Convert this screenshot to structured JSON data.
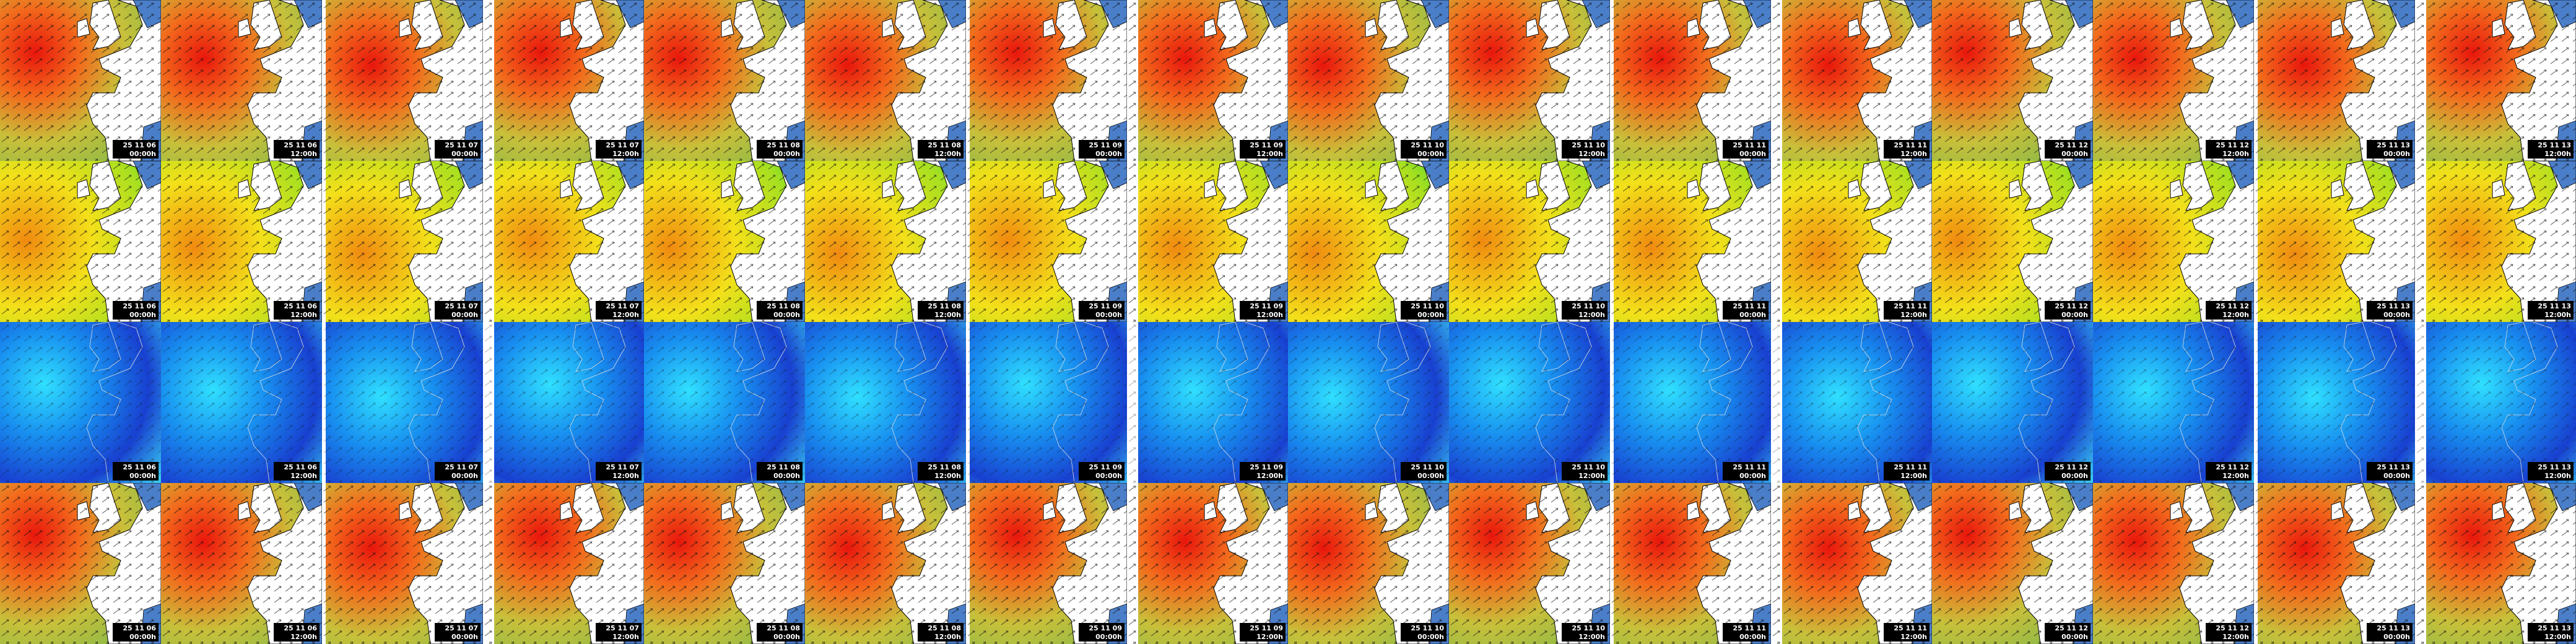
{
  "rows": [
    {
      "tiles": [
        {
          "date": "25 11 06",
          "time": "00:00h"
        },
        {
          "date": "25 11 06",
          "time": "12:00h"
        },
        {
          "date": "25 11 07",
          "time": "00:00h"
        },
        {
          "date": "25 11 07",
          "time": "12:00h"
        },
        {
          "date": "25 11 08",
          "time": "00:00h"
        },
        {
          "date": "25 11 08",
          "time": "12:00h"
        },
        {
          "date": "25 11 09",
          "time": "00:00h"
        },
        {
          "date": "25 11 09",
          "time": "12:00h"
        },
        {
          "date": "25 11 10",
          "time": "00:00h"
        },
        {
          "date": "25 11 10",
          "time": "12:00h"
        },
        {
          "date": "25 11 11",
          "time": "00:00h"
        },
        {
          "date": "25 11 11",
          "time": "12:00h"
        },
        {
          "date": "25 11 12",
          "time": "00:00h"
        },
        {
          "date": "25 11 12",
          "time": "12:00h"
        },
        {
          "date": "25 11 13",
          "time": "00:00h"
        },
        {
          "date": "25 11 13",
          "time": "12:00h"
        }
      ]
    },
    {
      "tiles": [
        {
          "date": "25 11 06",
          "time": "00:00h"
        },
        {
          "date": "25 11 06",
          "time": "12:00h"
        },
        {
          "date": "25 11 07",
          "time": "00:00h"
        },
        {
          "date": "25 11 07",
          "time": "12:00h"
        },
        {
          "date": "25 11 08",
          "time": "00:00h"
        },
        {
          "date": "25 11 08",
          "time": "12:00h"
        },
        {
          "date": "25 11 09",
          "time": "00:00h"
        },
        {
          "date": "25 11 09",
          "time": "12:00h"
        },
        {
          "date": "25 11 10",
          "time": "00:00h"
        },
        {
          "date": "25 11 10",
          "time": "12:00h"
        },
        {
          "date": "25 11 11",
          "time": "00:00h"
        },
        {
          "date": "25 11 11",
          "time": "12:00h"
        },
        {
          "date": "25 11 12",
          "time": "00:00h"
        },
        {
          "date": "25 11 12",
          "time": "12:00h"
        },
        {
          "date": "25 11 13",
          "time": "00:00h"
        },
        {
          "date": "25 11 13",
          "time": "12:00h"
        }
      ]
    },
    {
      "tiles": [
        {
          "date": "25 11 06",
          "time": "00:00h"
        },
        {
          "date": "25 11 06",
          "time": "12:00h"
        },
        {
          "date": "25 11 07",
          "time": "00:00h"
        },
        {
          "date": "25 11 07",
          "time": "12:00h"
        },
        {
          "date": "25 11 08",
          "time": "00:00h"
        },
        {
          "date": "25 11 08",
          "time": "12:00h"
        },
        {
          "date": "25 11 09",
          "time": "00:00h"
        },
        {
          "date": "25 11 09",
          "time": "12:00h"
        },
        {
          "date": "25 11 10",
          "time": "00:00h"
        },
        {
          "date": "25 11 10",
          "time": "12:00h"
        },
        {
          "date": "25 11 11",
          "time": "00:00h"
        },
        {
          "date": "25 11 11",
          "time": "12:00h"
        },
        {
          "date": "25 11 12",
          "time": "00:00h"
        },
        {
          "date": "25 11 12",
          "time": "12:00h"
        },
        {
          "date": "25 11 13",
          "time": "00:00h"
        },
        {
          "date": "25 11 13",
          "time": "12:00h"
        }
      ]
    },
    {
      "tiles": [
        {
          "date": "25 11 06",
          "time": "00:00h"
        },
        {
          "date": "25 11 06",
          "time": "12:00h"
        },
        {
          "date": "25 11 07",
          "time": "00:00h"
        },
        {
          "date": "25 11 07",
          "time": "12:00h"
        },
        {
          "date": "25 11 08",
          "time": "00:00h"
        },
        {
          "date": "25 11 08",
          "time": "12:00h"
        },
        {
          "date": "25 11 09",
          "time": "00:00h"
        },
        {
          "date": "25 11 09",
          "time": "12:00h"
        },
        {
          "date": "25 11 10",
          "time": "00:00h"
        },
        {
          "date": "25 11 10",
          "time": "12:00h"
        },
        {
          "date": "25 11 11",
          "time": "00:00h"
        },
        {
          "date": "25 11 11",
          "time": "12:00h"
        },
        {
          "date": "25 11 12",
          "time": "00:00h"
        },
        {
          "date": "25 11 12",
          "time": "12:00h"
        },
        {
          "date": "25 11 13",
          "time": "00:00h"
        },
        {
          "date": "25 11 13",
          "time": "12:00h"
        }
      ]
    }
  ]
}
